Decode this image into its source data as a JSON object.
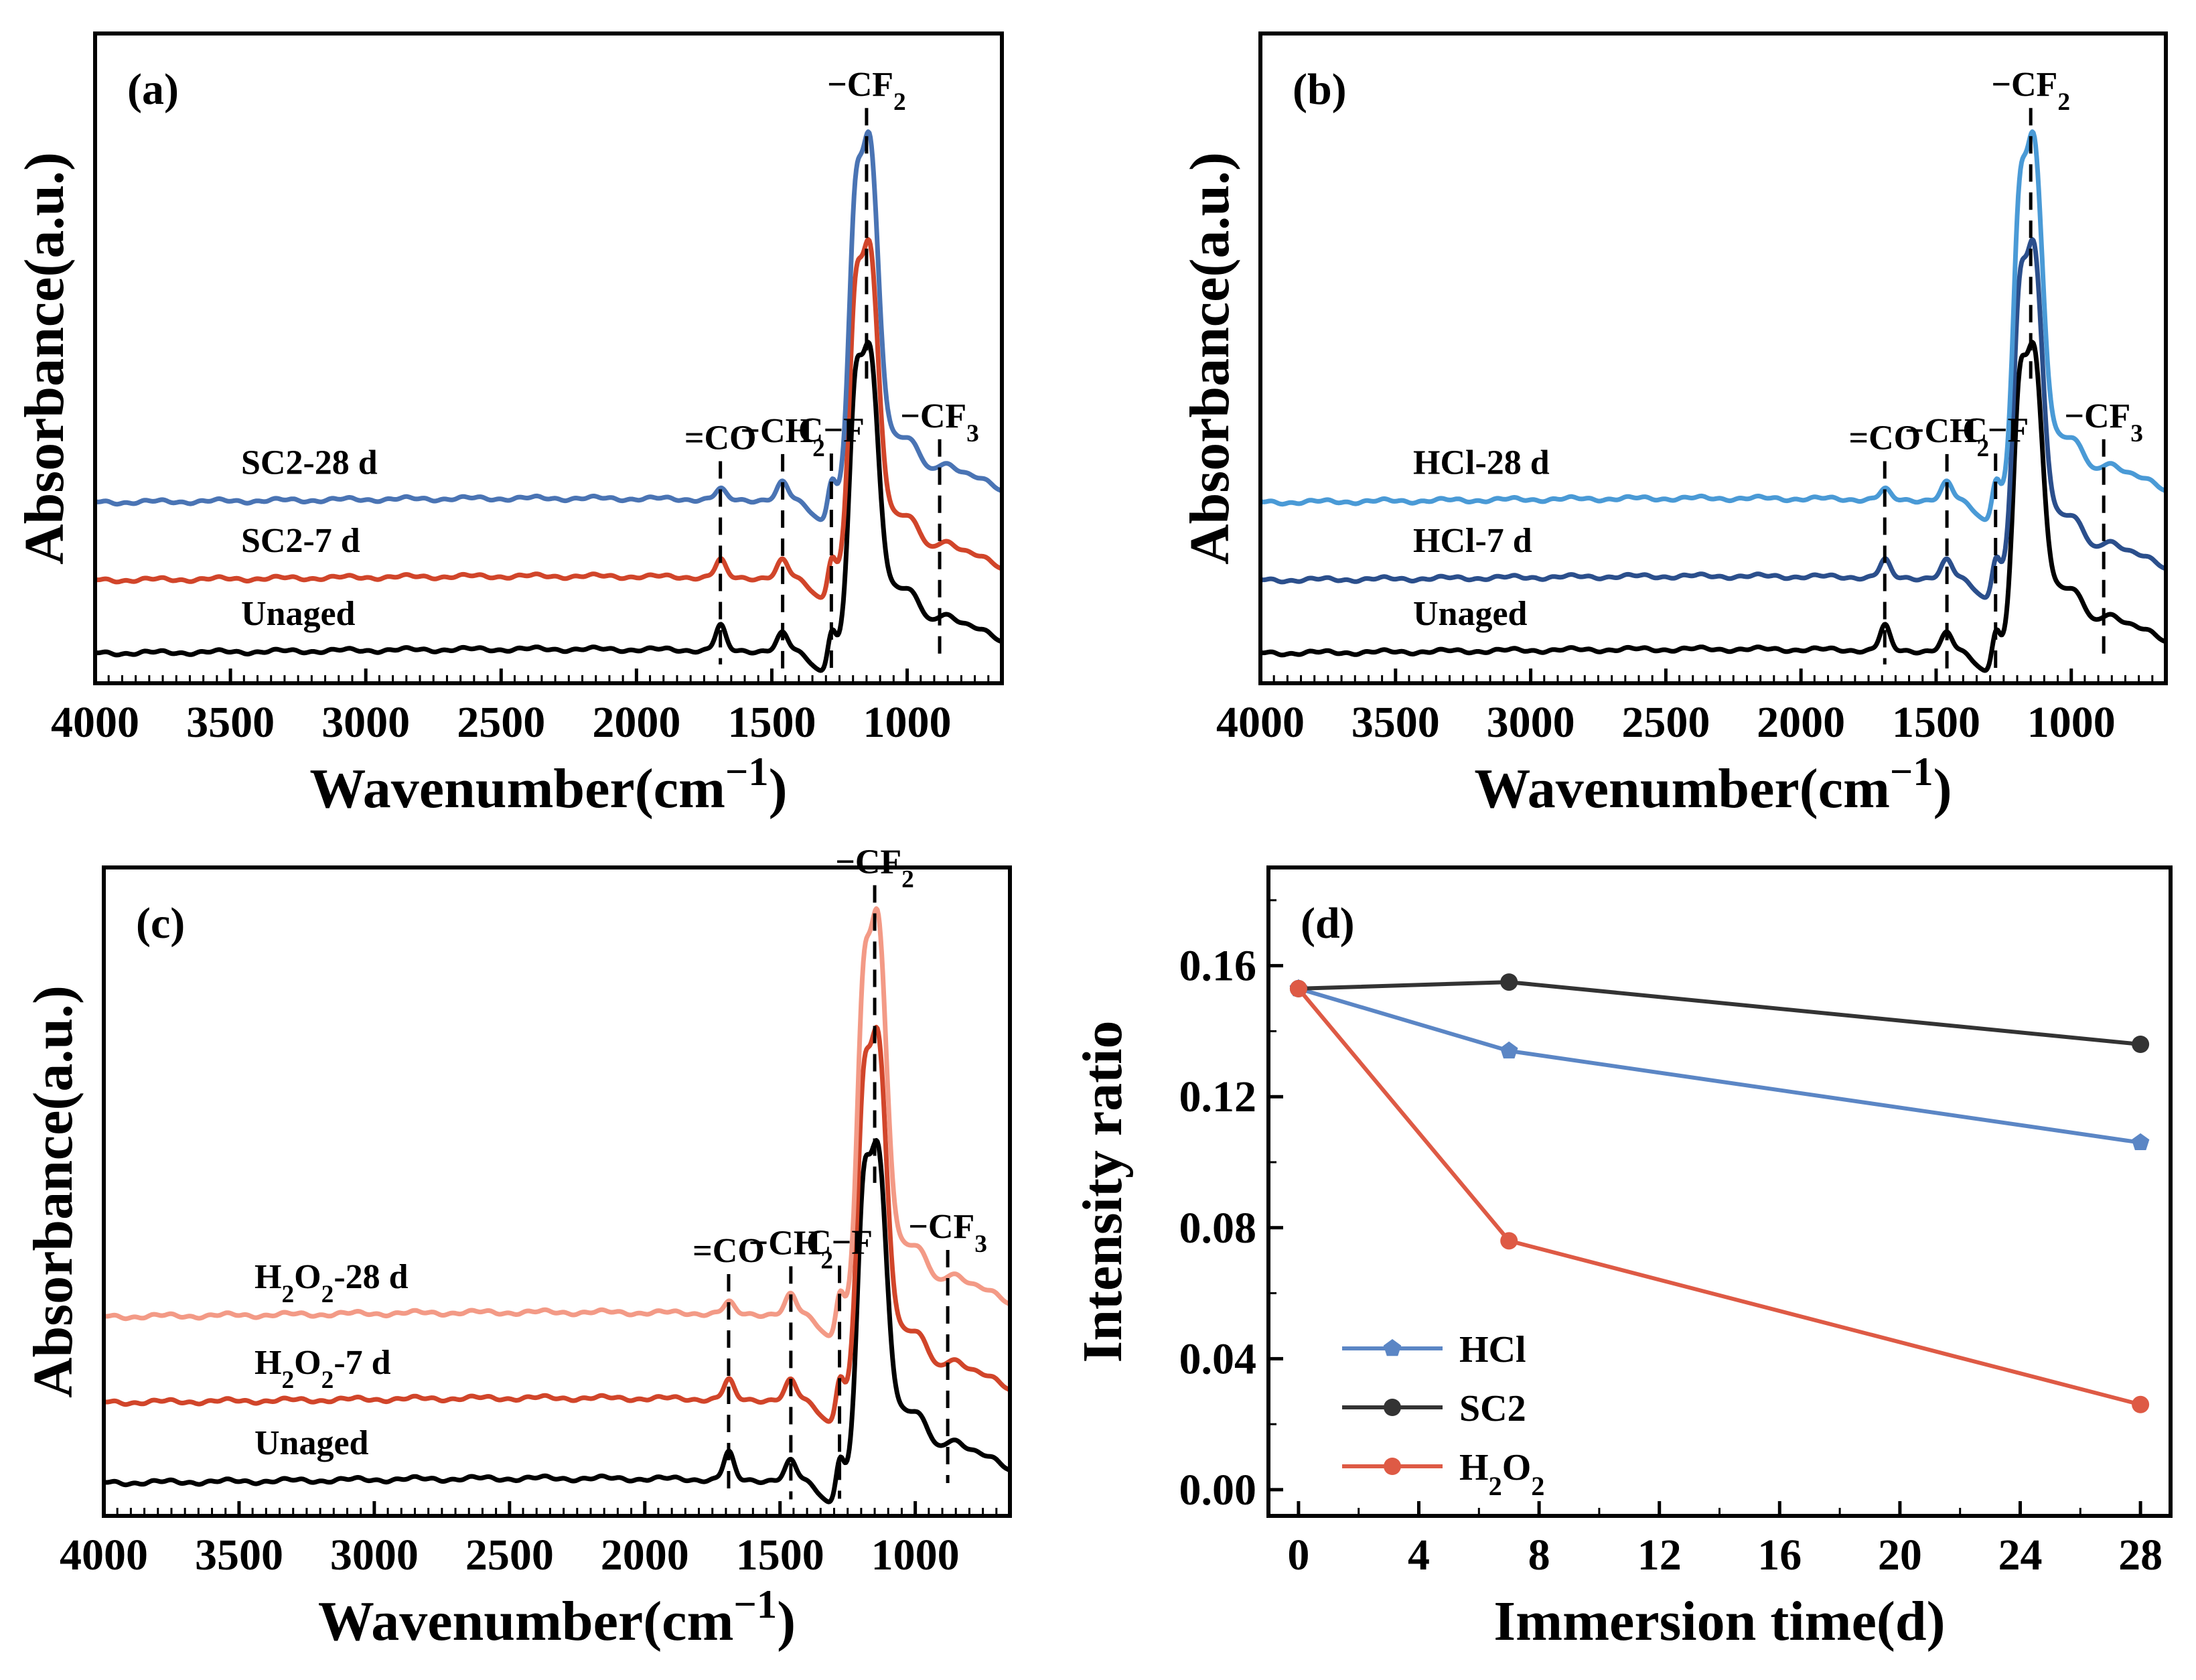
{
  "colors": {
    "black": "#000000",
    "sc2_7": "#d1452a",
    "sc2_28": "#4a74b4",
    "hcl_7": "#2b4f8c",
    "hcl_28": "#4a9ad6",
    "h2o2_7": "#d1452a",
    "h2o2_28": "#f39a86",
    "legend_hcl": "#5b86c5",
    "legend_sc2": "#333333",
    "legend_h2o2": "#de5a45"
  },
  "chart_data": [
    {
      "id": "a",
      "type": "line",
      "panel_label": "(a)",
      "xlabel_main": "Wavenumber(cm",
      "xlabel_sup": "−1",
      "xlabel_close": ")",
      "ylabel": "Absorbance(a.u.)",
      "xlim": [
        4000,
        650
      ],
      "x_reversed": true,
      "y_ticks_shown": false,
      "x_ticks": [
        4000,
        3500,
        3000,
        2500,
        2000,
        1500,
        1000
      ],
      "series": [
        {
          "name": "Unaged",
          "color_key": "black",
          "offset": 0
        },
        {
          "name": "SC2-7 d",
          "color_key": "sc2_7",
          "offset": 1
        },
        {
          "name": "SC2-28 d",
          "color_key": "sc2_28",
          "offset": 2
        }
      ],
      "annotations": [
        {
          "label": "=CO",
          "wavenumber": 1690
        },
        {
          "label": "−CH",
          "sub": "2",
          "wavenumber": 1460
        },
        {
          "label": "C−F",
          "wavenumber": 1280
        },
        {
          "label": "−CF",
          "sub": "2",
          "wavenumber": 1150
        },
        {
          "label": "−CF",
          "sub": "3",
          "wavenumber": 880
        }
      ]
    },
    {
      "id": "b",
      "type": "line",
      "panel_label": "(b)",
      "xlabel_main": "Wavenumber(cm",
      "xlabel_sup": "−1",
      "xlabel_close": ")",
      "ylabel": "Absorbance(a.u.)",
      "xlim": [
        4000,
        650
      ],
      "x_reversed": true,
      "y_ticks_shown": false,
      "x_ticks": [
        4000,
        3500,
        3000,
        2500,
        2000,
        1500,
        1000
      ],
      "series": [
        {
          "name": "Unaged",
          "color_key": "black",
          "offset": 0
        },
        {
          "name": "HCl-7 d",
          "color_key": "hcl_7",
          "offset": 1
        },
        {
          "name": "HCl-28 d",
          "color_key": "hcl_28",
          "offset": 2
        }
      ],
      "annotations": [
        {
          "label": "=CO",
          "wavenumber": 1690
        },
        {
          "label": "−CH",
          "sub": "2",
          "wavenumber": 1460
        },
        {
          "label": "C−F",
          "wavenumber": 1280
        },
        {
          "label": "−CF",
          "sub": "2",
          "wavenumber": 1150
        },
        {
          "label": "−CF",
          "sub": "3",
          "wavenumber": 880
        }
      ]
    },
    {
      "id": "c",
      "type": "line",
      "panel_label": "(c)",
      "xlabel_main": "Wavenumber(cm",
      "xlabel_sup": "−1",
      "xlabel_close": ")",
      "ylabel": "Absorbance(a.u.)",
      "xlim": [
        4000,
        650
      ],
      "x_reversed": true,
      "y_ticks_shown": false,
      "x_ticks": [
        4000,
        3500,
        3000,
        2500,
        2000,
        1500,
        1000
      ],
      "series": [
        {
          "name": "Unaged",
          "color_key": "black",
          "offset": 0
        },
        {
          "name": "H2O2-7 d",
          "display": {
            "a": "H",
            "s1": "2",
            "b": "O",
            "s2": "2",
            "c": "-7 d"
          },
          "color_key": "h2o2_7",
          "offset": 1
        },
        {
          "name": "H2O2-28 d",
          "display": {
            "a": "H",
            "s1": "2",
            "b": "O",
            "s2": "2",
            "c": "-28 d"
          },
          "color_key": "h2o2_28",
          "offset": 2
        }
      ],
      "annotations": [
        {
          "label": "=CO",
          "wavenumber": 1690
        },
        {
          "label": "−CH",
          "sub": "2",
          "wavenumber": 1460
        },
        {
          "label": "C−F",
          "wavenumber": 1280
        },
        {
          "label": "−CF",
          "sub": "2",
          "wavenumber": 1150
        },
        {
          "label": "−CF",
          "sub": "3",
          "wavenumber": 880
        }
      ]
    },
    {
      "id": "d",
      "type": "line",
      "panel_label": "(d)",
      "xlabel": "Immersion time(d)",
      "ylabel": "Intensity ratio",
      "xlim": [
        -1,
        29
      ],
      "ylim": [
        -0.008,
        0.19
      ],
      "x_ticks": [
        0,
        4,
        8,
        12,
        16,
        20,
        24,
        28
      ],
      "y_ticks": [
        "0.00",
        "0.04",
        "0.08",
        "0.12",
        "0.16"
      ],
      "series": [
        {
          "name": "HCl",
          "color_key": "legend_hcl",
          "marker": "pentagon",
          "x": [
            0,
            7,
            28
          ],
          "y": [
            0.153,
            0.134,
            0.106
          ]
        },
        {
          "name": "SC2",
          "color_key": "legend_sc2",
          "marker": "circle",
          "x": [
            0,
            7,
            28
          ],
          "y": [
            0.153,
            0.155,
            0.136
          ]
        },
        {
          "name": "H2O2",
          "legend": {
            "a": "H",
            "s1": "2",
            "b": "O",
            "s2": "2"
          },
          "color_key": "legend_h2o2",
          "marker": "circle",
          "x": [
            0,
            7,
            28
          ],
          "y": [
            0.153,
            0.076,
            0.026
          ]
        }
      ],
      "legend_position": "bottom-left"
    }
  ]
}
